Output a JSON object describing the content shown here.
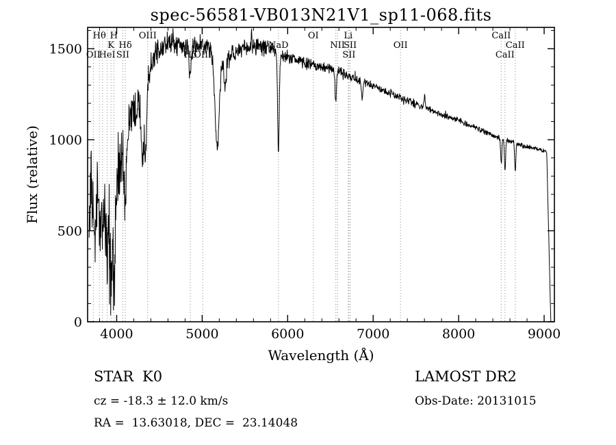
{
  "title": "spec-56581-VB013N21V1_sp11-068.fits",
  "footer": {
    "object_class": "STAR",
    "subclass": "K0",
    "survey": "LAMOST DR2",
    "cz": "cz = -18.3 ± 12.0 km/s",
    "obs_date": "Obs-Date: 20131015",
    "coords": "RA =  13.63018, DEC =  23.14048"
  },
  "chart_data": {
    "type": "line",
    "title": "spec-56581-VB013N21V1_sp11-068.fits",
    "xlabel": "Wavelength (Å)",
    "ylabel": "Flux (relative)",
    "xlim": [
      3660,
      9120
    ],
    "ylim": [
      0,
      1617
    ],
    "xticks": [
      4000,
      5000,
      6000,
      7000,
      8000,
      9000
    ],
    "xtick_minor_step": 200,
    "yticks": [
      0,
      500,
      1000,
      1500
    ],
    "ytick_minor_step": 100,
    "grid": "dotted-vertical-at-spectral-lines",
    "legend": "none",
    "line_color": "#000000",
    "grid_color": "#8a8a8a",
    "noise_seed": 1234,
    "sample_step": 3.5,
    "spectral_lines": [
      {
        "label": "Hθ",
        "wl": 3798,
        "row": 1
      },
      {
        "label": "H",
        "wl": 3968,
        "row": 1
      },
      {
        "label": "K",
        "wl": 3933,
        "row": 2
      },
      {
        "label": "Hδ",
        "wl": 4101,
        "row": 2
      },
      {
        "label": "OII",
        "wl": 3727,
        "row": 3
      },
      {
        "label": "HeI",
        "wl": 3889,
        "row": 3
      },
      {
        "label": "SII",
        "wl": 4072,
        "row": 3
      },
      {
        "label": "",
        "wl": 3835,
        "row": 0
      },
      {
        "label": "OIII",
        "wl": 4363,
        "row": 1
      },
      {
        "label": "Hβ",
        "wl": 4861,
        "row": 3
      },
      {
        "label": "OIII",
        "wl": 5007,
        "row": 3
      },
      {
        "label": "NaD",
        "wl": 5892,
        "row": 2
      },
      {
        "label": "OI",
        "wl": 6300,
        "row": 1
      },
      {
        "label": "",
        "wl": 6563,
        "row": 0
      },
      {
        "label": "NII",
        "wl": 6583,
        "row": 2
      },
      {
        "label": "Li",
        "wl": 6708,
        "row": 1
      },
      {
        "label": "SII",
        "wl": 6731,
        "row": 2
      },
      {
        "label": "SII",
        "wl": 6717,
        "row": 3
      },
      {
        "label": "OII",
        "wl": 7320,
        "row": 2
      },
      {
        "label": "CaII",
        "wl": 8498,
        "row": 1
      },
      {
        "label": "CaII",
        "wl": 8662,
        "row": 2
      },
      {
        "label": "CaII",
        "wl": 8542,
        "row": 3
      }
    ],
    "continuum": [
      [
        3670,
        520
      ],
      [
        3700,
        680
      ],
      [
        3730,
        620
      ],
      [
        3760,
        700
      ],
      [
        3790,
        760
      ],
      [
        3820,
        700
      ],
      [
        3850,
        680
      ],
      [
        3880,
        640
      ],
      [
        3915,
        610
      ],
      [
        3950,
        520
      ],
      [
        3990,
        640
      ],
      [
        4030,
        820
      ],
      [
        4070,
        900
      ],
      [
        4110,
        980
      ],
      [
        4150,
        1080
      ],
      [
        4190,
        1180
      ],
      [
        4230,
        1260
      ],
      [
        4270,
        1240
      ],
      [
        4310,
        1190
      ],
      [
        4350,
        1280
      ],
      [
        4400,
        1420
      ],
      [
        4450,
        1480
      ],
      [
        4500,
        1510
      ],
      [
        4600,
        1530
      ],
      [
        4700,
        1520
      ],
      [
        4800,
        1500
      ],
      [
        4900,
        1515
      ],
      [
        5000,
        1525
      ],
      [
        5080,
        1500
      ],
      [
        5150,
        1470
      ],
      [
        5250,
        1440
      ],
      [
        5350,
        1470
      ],
      [
        5450,
        1490
      ],
      [
        5550,
        1500
      ],
      [
        5650,
        1515
      ],
      [
        5750,
        1505
      ],
      [
        5850,
        1480
      ],
      [
        5950,
        1455
      ],
      [
        6050,
        1445
      ],
      [
        6150,
        1430
      ],
      [
        6250,
        1415
      ],
      [
        6350,
        1405
      ],
      [
        6450,
        1395
      ],
      [
        6550,
        1385
      ],
      [
        6650,
        1365
      ],
      [
        6750,
        1345
      ],
      [
        6850,
        1325
      ],
      [
        6950,
        1305
      ],
      [
        7050,
        1285
      ],
      [
        7150,
        1265
      ],
      [
        7250,
        1245
      ],
      [
        7350,
        1225
      ],
      [
        7450,
        1205
      ],
      [
        7550,
        1185
      ],
      [
        7650,
        1165
      ],
      [
        7750,
        1150
      ],
      [
        7850,
        1130
      ],
      [
        7950,
        1115
      ],
      [
        8050,
        1095
      ],
      [
        8150,
        1075
      ],
      [
        8250,
        1055
      ],
      [
        8350,
        1035
      ],
      [
        8450,
        1015
      ],
      [
        8550,
        1000
      ],
      [
        8650,
        985
      ],
      [
        8750,
        968
      ],
      [
        8850,
        955
      ],
      [
        8950,
        945
      ],
      [
        9050,
        935
      ]
    ],
    "noise_profile": [
      [
        3670,
        290
      ],
      [
        3950,
        290
      ],
      [
        4050,
        220
      ],
      [
        4150,
        160
      ],
      [
        4250,
        130
      ],
      [
        4400,
        90
      ],
      [
        4550,
        70
      ],
      [
        5000,
        62
      ],
      [
        5400,
        58
      ],
      [
        5800,
        55
      ],
      [
        6000,
        45
      ],
      [
        6300,
        38
      ],
      [
        6600,
        32
      ],
      [
        7000,
        28
      ],
      [
        7400,
        25
      ],
      [
        7800,
        22
      ],
      [
        8200,
        20
      ],
      [
        8600,
        16
      ],
      [
        9000,
        14
      ]
    ],
    "absorption_lines": [
      {
        "wl": 3750,
        "depth": 320,
        "width": 10
      },
      {
        "wl": 3798,
        "depth": 260,
        "width": 9
      },
      {
        "wl": 3835,
        "depth": 260,
        "width": 9
      },
      {
        "wl": 3889,
        "depth": 300,
        "width": 10
      },
      {
        "wl": 3933,
        "depth": 360,
        "width": 12
      },
      {
        "wl": 3968,
        "depth": 360,
        "width": 12
      },
      {
        "wl": 4101,
        "depth": 310,
        "width": 11
      },
      {
        "wl": 4227,
        "depth": 180,
        "width": 9
      },
      {
        "wl": 4300,
        "depth": 300,
        "width": 20
      },
      {
        "wl": 4340,
        "depth": 250,
        "width": 11
      },
      {
        "wl": 4861,
        "depth": 170,
        "width": 10
      },
      {
        "wl": 5175,
        "depth": 520,
        "width": 25
      },
      {
        "wl": 5270,
        "depth": 160,
        "width": 12
      },
      {
        "wl": 5892,
        "depth": 540,
        "width": 9
      },
      {
        "wl": 6563,
        "depth": 170,
        "width": 9
      },
      {
        "wl": 6870,
        "depth": 90,
        "width": 9
      },
      {
        "wl": 8498,
        "depth": 140,
        "width": 7
      },
      {
        "wl": 8542,
        "depth": 175,
        "width": 7
      },
      {
        "wl": 8662,
        "depth": 155,
        "width": 7
      }
    ],
    "emission_spikes": [
      {
        "wl": 5577,
        "height": 85,
        "width": 6
      },
      {
        "wl": 7600,
        "height": 70,
        "width": 8
      }
    ],
    "red_cutoff": {
      "start": 9030,
      "end": 9078
    }
  }
}
